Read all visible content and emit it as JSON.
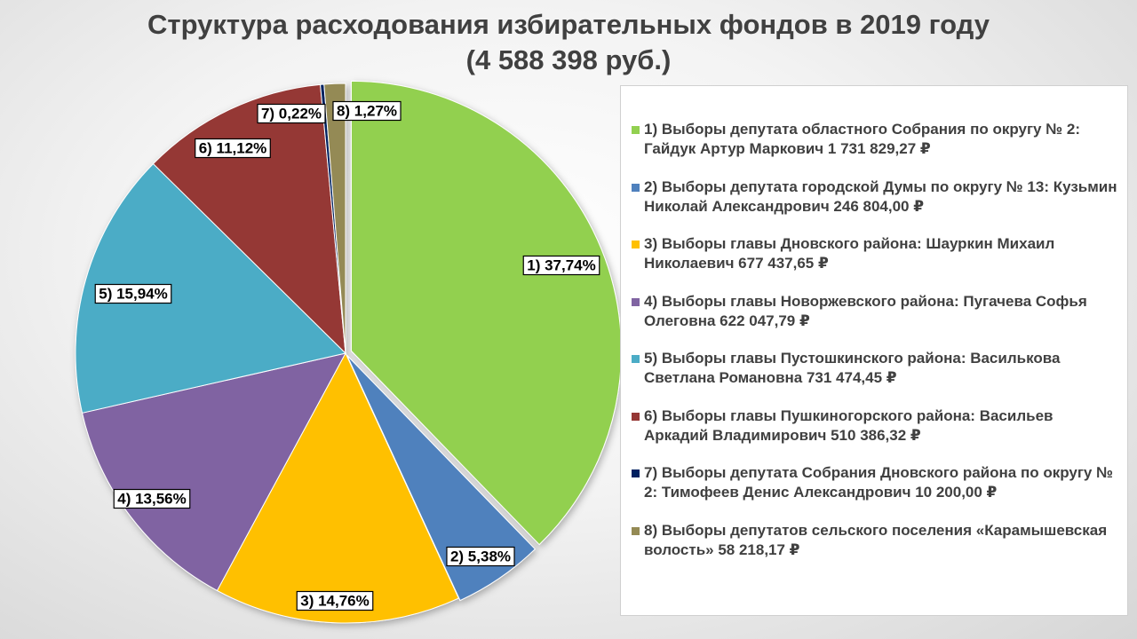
{
  "chart_data": {
    "type": "pie",
    "title": "Структура  расходования избирательных фондов в 2019 году",
    "subtitle": "(4 588 398 руб.)",
    "legend_position": "right",
    "slices": [
      {
        "label": "1) 37,74%",
        "value": 37.74,
        "color": "#92d050",
        "legend": "1) Выборы депутата областного Собрания по округу № 2: Гайдук Артур Маркович  1 731 829,27 ₽"
      },
      {
        "label": "2) 5,38%",
        "value": 5.38,
        "color": "#4f81bd",
        "legend": "2) Выборы депутата городской Думы по округу № 13: Кузьмин Николай Александрович  246 804,00 ₽"
      },
      {
        "label": "3) 14,76%",
        "value": 14.76,
        "color": "#ffc000",
        "legend": "3) Выборы главы Дновского района: Шауркин Михаил Николаевич  677 437,65 ₽"
      },
      {
        "label": "4) 13,56%",
        "value": 13.56,
        "color": "#8064a2",
        "legend": "4) Выборы главы Новоржевского района: Пугачева Софья Олеговна  622 047,79 ₽"
      },
      {
        "label": "5) 15,94%",
        "value": 15.94,
        "color": "#4bacc6",
        "legend": "5) Выборы главы Пустошкинского района: Василькова Светлана Романовна  731 474,45 ₽"
      },
      {
        "label": "6) 11,12%",
        "value": 11.12,
        "color": "#953735",
        "legend": "6) Выборы главы Пушкиногорского района: Васильев Аркадий Владимирович  510 386,32 ₽"
      },
      {
        "label": "7) 0,22%",
        "value": 0.22,
        "color": "#002060",
        "legend": "7) Выборы депутата Собрания Дновского района по округу № 2: Тимофеев Денис Александрович  10 200,00 ₽"
      },
      {
        "label": "8) 1,27%",
        "value": 1.27,
        "color": "#948a54",
        "legend": "8) Выборы депутатов сельского поселения «Карамышевская волость»   58 218,17 ₽"
      }
    ]
  }
}
